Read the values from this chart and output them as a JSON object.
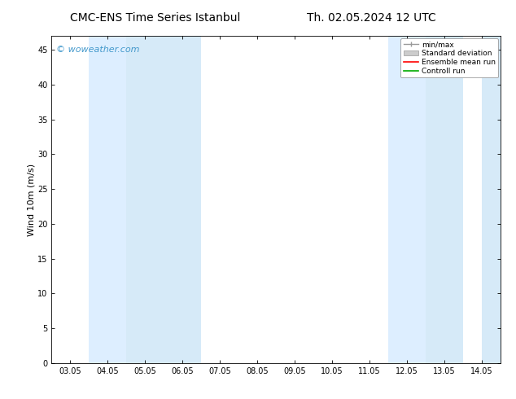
{
  "title_left": "CMC-ENS Time Series Istanbul",
  "title_right": "Th. 02.05.2024 12 UTC",
  "ylabel": "Wind 10m (m/s)",
  "bg_color": "#ffffff",
  "plot_bg_color": "#ffffff",
  "ylim": [
    0,
    47
  ],
  "yticks": [
    0,
    5,
    10,
    15,
    20,
    25,
    30,
    35,
    40,
    45
  ],
  "xtick_labels": [
    "03.05",
    "04.05",
    "05.05",
    "06.05",
    "07.05",
    "08.05",
    "09.05",
    "10.05",
    "11.05",
    "12.05",
    "13.05",
    "14.05"
  ],
  "xtick_positions": [
    0,
    1,
    2,
    3,
    4,
    5,
    6,
    7,
    8,
    9,
    10,
    11
  ],
  "shaded_regions": [
    {
      "xmin": 0.5,
      "xmax": 1.5,
      "color": "#ddeeff"
    },
    {
      "xmin": 1.5,
      "xmax": 3.5,
      "color": "#d6eaf8"
    },
    {
      "xmin": 8.5,
      "xmax": 9.5,
      "color": "#ddeeff"
    },
    {
      "xmin": 9.5,
      "xmax": 10.5,
      "color": "#d6eaf8"
    },
    {
      "xmin": 11.0,
      "xmax": 11.5,
      "color": "#d6eaf8"
    }
  ],
  "watermark_text": "© woweather.com",
  "watermark_color": "#4499cc",
  "legend_labels": [
    "min/max",
    "Standard deviation",
    "Ensemble mean run",
    "Controll run"
  ],
  "legend_line_colors": [
    "#999999",
    "#bbbbbb",
    "#ff0000",
    "#00aa00"
  ],
  "title_fontsize": 10,
  "axis_fontsize": 8,
  "tick_fontsize": 7,
  "watermark_fontsize": 8
}
